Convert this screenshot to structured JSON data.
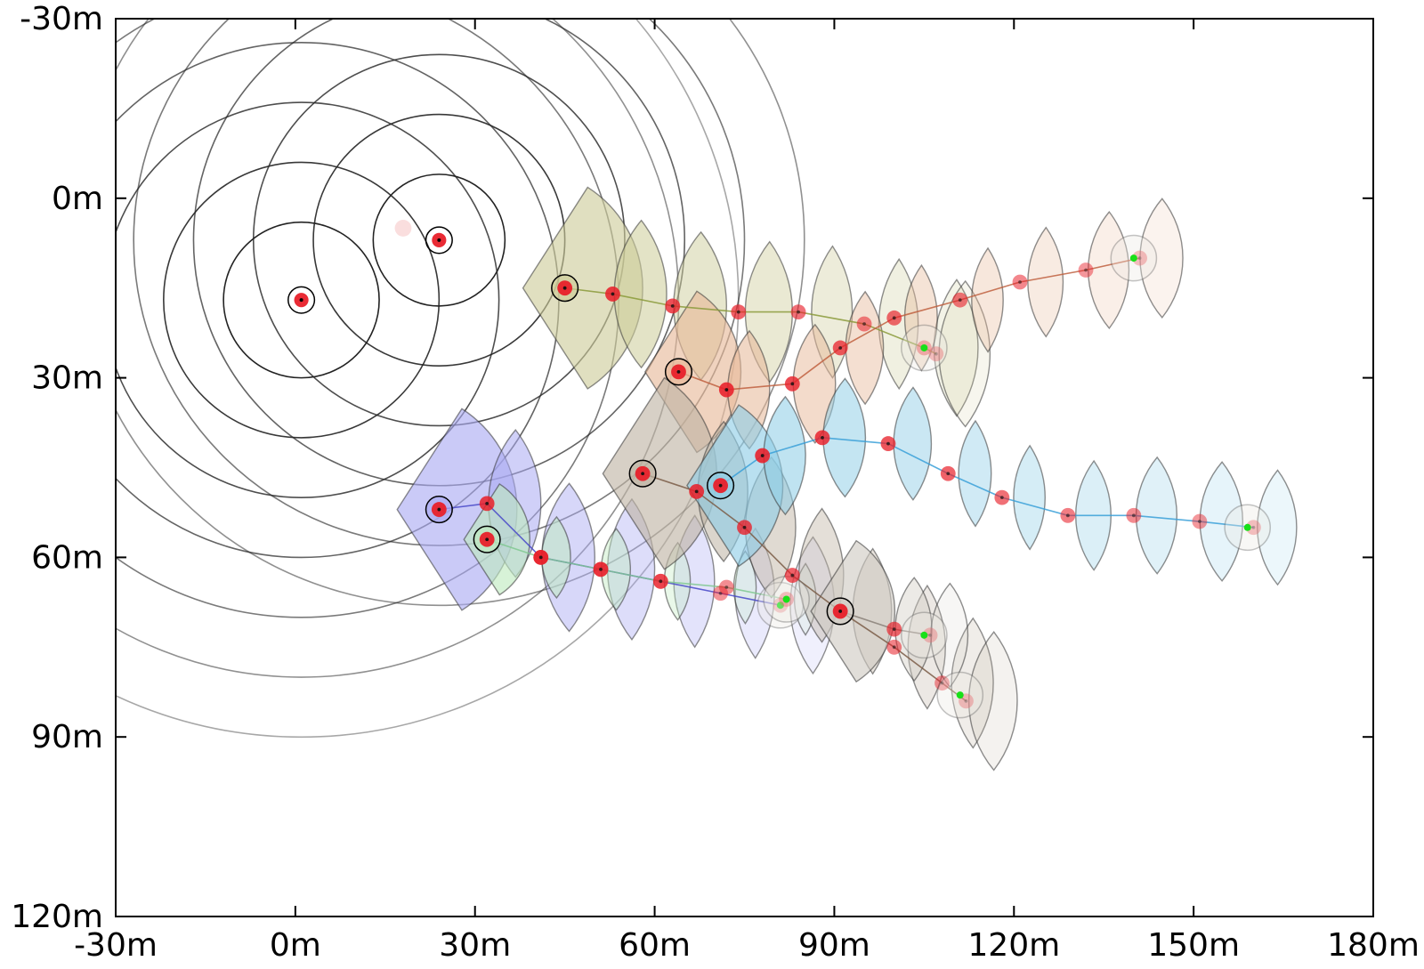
{
  "chart_data": {
    "type": "scatter",
    "title": "",
    "xlabel": "",
    "ylabel": "",
    "xlim": [
      -30,
      180
    ],
    "ylim": [
      -30,
      120
    ],
    "y_inverted": true,
    "x_ticks": [
      "-30m",
      "0m",
      "30m",
      "60m",
      "90m",
      "120m",
      "150m",
      "180m"
    ],
    "x_tick_values": [
      -30,
      0,
      30,
      60,
      90,
      120,
      150,
      180
    ],
    "y_ticks": [
      "-30m",
      "0m",
      "30m",
      "60m",
      "90m",
      "120m"
    ],
    "y_tick_values": [
      -30,
      0,
      30,
      60,
      90,
      120
    ],
    "range_rings": [
      {
        "center": [
          1,
          17
        ],
        "radii": [
          13,
          23,
          33,
          43,
          53,
          63,
          73
        ],
        "color": "#222222"
      },
      {
        "center": [
          24,
          7
        ],
        "radii": [
          11,
          21,
          31,
          41,
          51,
          61
        ],
        "color": "#222222"
      }
    ],
    "fade_points": [
      {
        "x": 18,
        "y": 5
      }
    ],
    "series": [
      {
        "name": "olive",
        "fill": "#cdcc99",
        "line": "#8a9a3a",
        "points": [
          [
            45,
            15
          ],
          [
            53,
            16
          ],
          [
            63,
            18
          ],
          [
            74,
            19
          ],
          [
            84,
            19
          ],
          [
            95,
            21
          ],
          [
            105,
            25
          ],
          [
            107,
            26
          ]
        ],
        "end": [
          105,
          25
        ],
        "sector_radius": 20
      },
      {
        "name": "salmon",
        "fill": "#e7b898",
        "line": "#c06040",
        "points": [
          [
            64,
            29
          ],
          [
            72,
            32
          ],
          [
            83,
            31
          ],
          [
            91,
            25
          ],
          [
            100,
            20
          ],
          [
            111,
            17
          ],
          [
            121,
            14
          ],
          [
            132,
            12
          ],
          [
            141,
            10
          ]
        ],
        "end": [
          140,
          10
        ],
        "sector_radius": 16
      },
      {
        "name": "blue",
        "fill": "#a9a9f2",
        "line": "#4848c8",
        "points": [
          [
            24,
            52
          ],
          [
            32,
            51
          ],
          [
            41,
            60
          ],
          [
            51,
            62
          ],
          [
            61,
            64
          ],
          [
            71,
            66
          ],
          [
            81,
            68
          ]
        ],
        "end": [
          81,
          68
        ],
        "sector_radius": 20
      },
      {
        "name": "mint",
        "fill": "#bfeabf",
        "line": "#80c890",
        "points": [
          [
            32,
            57
          ],
          [
            41,
            60
          ],
          [
            51,
            62
          ],
          [
            61,
            64
          ],
          [
            72,
            65
          ],
          [
            82,
            67
          ]
        ],
        "end": [
          82,
          67
        ],
        "sector_radius": 11
      },
      {
        "name": "taupe",
        "fill": "#bfb3a3",
        "line": "#7a5c46",
        "points": [
          [
            58,
            46
          ],
          [
            67,
            49
          ],
          [
            75,
            55
          ],
          [
            83,
            63
          ],
          [
            91,
            69
          ],
          [
            100,
            75
          ],
          [
            108,
            81
          ],
          [
            112,
            84
          ]
        ],
        "end": [
          111,
          83
        ],
        "sector_radius": 19
      },
      {
        "name": "cyan",
        "fill": "#8ecde6",
        "line": "#3aa0d8",
        "points": [
          [
            71,
            48
          ],
          [
            78,
            43
          ],
          [
            88,
            40
          ],
          [
            99,
            41
          ],
          [
            109,
            46
          ],
          [
            118,
            50
          ],
          [
            129,
            53
          ],
          [
            140,
            53
          ],
          [
            151,
            54
          ],
          [
            160,
            55
          ]
        ],
        "end": [
          159,
          55
        ],
        "sector_radius": 16
      },
      {
        "name": "gray",
        "fill": "#cfc9c1",
        "line": "#8a8078",
        "points": [
          [
            91,
            69
          ],
          [
            100,
            72
          ],
          [
            106,
            73
          ]
        ],
        "end": [
          105,
          73
        ],
        "sector_radius": 14
      }
    ]
  }
}
